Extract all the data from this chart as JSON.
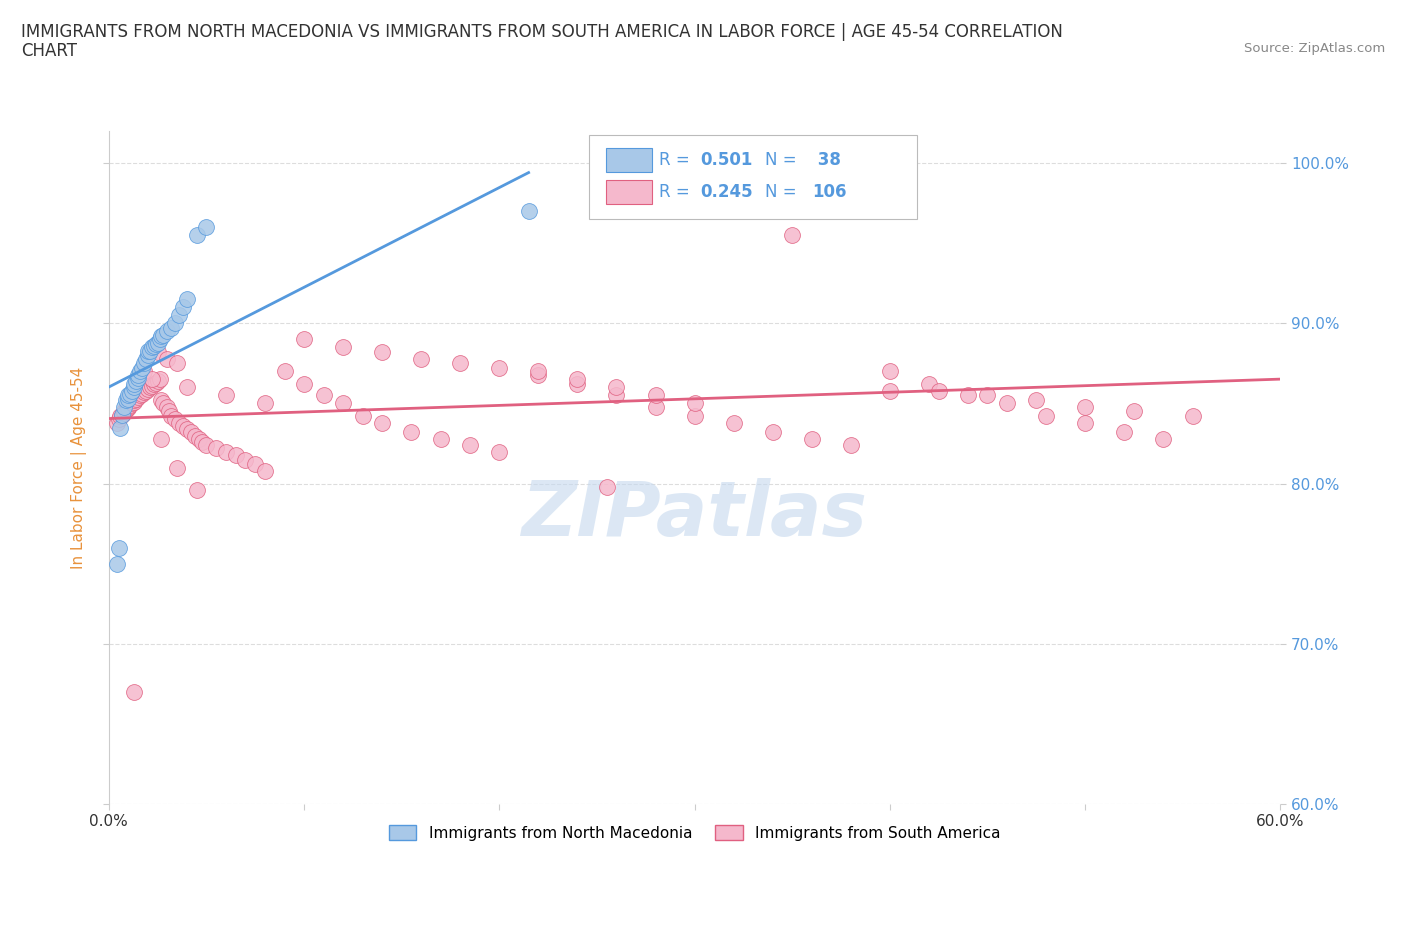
{
  "title_line1": "IMMIGRANTS FROM NORTH MACEDONIA VS IMMIGRANTS FROM SOUTH AMERICA IN LABOR FORCE | AGE 45-54 CORRELATION",
  "title_line2": "CHART",
  "source_text": "Source: ZipAtlas.com",
  "ylabel": "In Labor Force | Age 45-54",
  "xlim": [
    0.0,
    0.6
  ],
  "ylim": [
    0.6,
    1.02
  ],
  "yticks": [
    0.6,
    0.7,
    0.8,
    0.9,
    1.0
  ],
  "ytick_labels": [
    "60.0%",
    "70.0%",
    "80.0%",
    "90.0%",
    "100.0%"
  ],
  "xticks": [
    0.0,
    0.1,
    0.2,
    0.3,
    0.4,
    0.5,
    0.6
  ],
  "xtick_labels": [
    "0.0%",
    "",
    "",
    "",
    "",
    "",
    "60.0%"
  ],
  "blue_R": 0.501,
  "blue_N": 38,
  "pink_R": 0.245,
  "pink_N": 106,
  "blue_dot_color": "#a8c8e8",
  "pink_dot_color": "#f5b8cc",
  "blue_line_color": "#5599dd",
  "pink_line_color": "#e06080",
  "legend_blue_label": "Immigrants from North Macedonia",
  "legend_pink_label": "Immigrants from South America",
  "watermark": "ZIPatlas",
  "background_color": "#ffffff",
  "grid_color": "#dddddd",
  "title_fontsize": 12,
  "axis_label_color": "#e8923c",
  "tick_color": "#5599dd",
  "watermark_color": "#c5d8ee",
  "blue_x": [
    0.004,
    0.005,
    0.006,
    0.007,
    0.008,
    0.009,
    0.01,
    0.01,
    0.011,
    0.012,
    0.013,
    0.013,
    0.014,
    0.015,
    0.015,
    0.016,
    0.017,
    0.018,
    0.019,
    0.02,
    0.02,
    0.021,
    0.022,
    0.023,
    0.024,
    0.025,
    0.026,
    0.027,
    0.028,
    0.03,
    0.032,
    0.034,
    0.036,
    0.038,
    0.04,
    0.045,
    0.05,
    0.215
  ],
  "blue_y": [
    0.75,
    0.76,
    0.835,
    0.843,
    0.848,
    0.852,
    0.853,
    0.855,
    0.856,
    0.858,
    0.86,
    0.862,
    0.864,
    0.866,
    0.868,
    0.87,
    0.872,
    0.875,
    0.878,
    0.88,
    0.883,
    0.883,
    0.885,
    0.886,
    0.887,
    0.888,
    0.89,
    0.892,
    0.893,
    0.895,
    0.897,
    0.9,
    0.905,
    0.91,
    0.915,
    0.955,
    0.96,
    0.97
  ],
  "pink_x": [
    0.004,
    0.005,
    0.006,
    0.007,
    0.008,
    0.008,
    0.009,
    0.01,
    0.01,
    0.011,
    0.012,
    0.013,
    0.013,
    0.014,
    0.015,
    0.016,
    0.017,
    0.018,
    0.019,
    0.02,
    0.021,
    0.022,
    0.023,
    0.024,
    0.025,
    0.026,
    0.027,
    0.028,
    0.03,
    0.031,
    0.032,
    0.034,
    0.036,
    0.038,
    0.04,
    0.042,
    0.044,
    0.046,
    0.048,
    0.05,
    0.055,
    0.06,
    0.065,
    0.07,
    0.075,
    0.08,
    0.09,
    0.1,
    0.11,
    0.12,
    0.13,
    0.14,
    0.155,
    0.17,
    0.185,
    0.2,
    0.22,
    0.24,
    0.26,
    0.28,
    0.3,
    0.32,
    0.34,
    0.36,
    0.38,
    0.4,
    0.42,
    0.44,
    0.46,
    0.48,
    0.5,
    0.52,
    0.54,
    0.025,
    0.03,
    0.035,
    0.018,
    0.022,
    0.04,
    0.06,
    0.08,
    0.1,
    0.12,
    0.14,
    0.16,
    0.18,
    0.2,
    0.22,
    0.24,
    0.26,
    0.28,
    0.3,
    0.027,
    0.013,
    0.35,
    0.035,
    0.045,
    0.255,
    0.4,
    0.425,
    0.45,
    0.475,
    0.5,
    0.525,
    0.555
  ],
  "pink_y": [
    0.838,
    0.84,
    0.842,
    0.843,
    0.844,
    0.845,
    0.846,
    0.847,
    0.848,
    0.849,
    0.85,
    0.851,
    0.852,
    0.853,
    0.854,
    0.855,
    0.856,
    0.857,
    0.858,
    0.859,
    0.86,
    0.861,
    0.862,
    0.863,
    0.864,
    0.865,
    0.852,
    0.85,
    0.848,
    0.845,
    0.842,
    0.84,
    0.838,
    0.836,
    0.834,
    0.832,
    0.83,
    0.828,
    0.826,
    0.824,
    0.822,
    0.82,
    0.818,
    0.815,
    0.812,
    0.808,
    0.87,
    0.862,
    0.855,
    0.85,
    0.842,
    0.838,
    0.832,
    0.828,
    0.824,
    0.82,
    0.868,
    0.862,
    0.855,
    0.848,
    0.842,
    0.838,
    0.832,
    0.828,
    0.824,
    0.87,
    0.862,
    0.855,
    0.85,
    0.842,
    0.838,
    0.832,
    0.828,
    0.882,
    0.878,
    0.875,
    0.87,
    0.865,
    0.86,
    0.855,
    0.85,
    0.89,
    0.885,
    0.882,
    0.878,
    0.875,
    0.872,
    0.87,
    0.865,
    0.86,
    0.855,
    0.85,
    0.828,
    0.67,
    0.955,
    0.81,
    0.796,
    0.798,
    0.858,
    0.858,
    0.855,
    0.852,
    0.848,
    0.845,
    0.842
  ]
}
